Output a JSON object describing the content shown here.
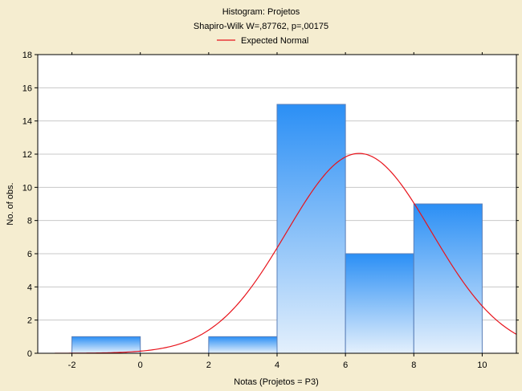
{
  "chart_data": {
    "type": "bar",
    "title": "Histogram: Projetos",
    "subtitle": "Shapiro-Wilk W=,87762, p=,00175",
    "legend": [
      {
        "name": "Expected Normal",
        "color": "#e8141c"
      }
    ],
    "legend_position": "top-center",
    "xlabel": "Notas (Projetos = P3)",
    "ylabel": "No. of obs.",
    "xlim": [
      -3,
      11
    ],
    "ylim": [
      0,
      18
    ],
    "x_ticks": [
      -2,
      0,
      2,
      4,
      6,
      8,
      10
    ],
    "y_ticks": [
      0,
      2,
      4,
      6,
      8,
      10,
      12,
      14,
      16,
      18
    ],
    "grid": true,
    "bins": [
      {
        "x0": -2,
        "x1": 0,
        "value": 1
      },
      {
        "x0": 0,
        "x1": 2,
        "value": 0
      },
      {
        "x0": 2,
        "x1": 4,
        "value": 1
      },
      {
        "x0": 4,
        "x1": 6,
        "value": 15
      },
      {
        "x0": 6,
        "x1": 8,
        "value": 6
      },
      {
        "x0": 8,
        "x1": 10,
        "value": 9
      }
    ],
    "expected_normal": {
      "mean": 6.4,
      "sd": 2.12,
      "n": 32,
      "bin_width": 2
    },
    "colors": {
      "bar_top": "#2b8ff5",
      "bar_bottom": "#e4f0fc",
      "bar_stroke": "#5a7fb8",
      "curve": "#e8141c",
      "background": "#f5edd0",
      "plot_background": "#ffffff",
      "grid": "#c8c8c8"
    }
  }
}
